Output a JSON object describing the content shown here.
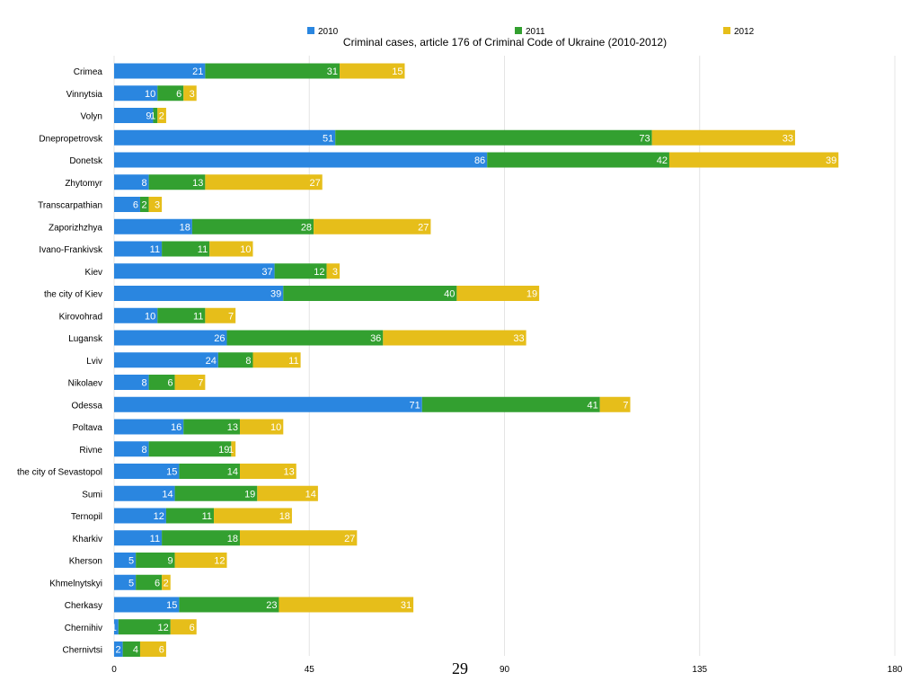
{
  "page_number": "29",
  "colors": {
    "2010": "#2a86e0",
    "2011": "#33a030",
    "2012": "#e6be1a",
    "grid": "#e4e4e4"
  },
  "chart_data": {
    "type": "bar",
    "orientation": "horizontal",
    "stacked": true,
    "title": "Criminal cases, article 176 of Criminal Code of Ukraine (2010-2012)",
    "legend_position": "top",
    "grid": true,
    "xlim": [
      0,
      180
    ],
    "x_ticks": [
      "0",
      "45",
      "90",
      "135",
      "180"
    ],
    "categories": [
      "Crimea",
      "Vinnytsia",
      "Volyn",
      "Dnepropetrovsk",
      "Donetsk",
      "Zhytomyr",
      "Transcarpathian",
      "Zaporizhzhya",
      "Ivano-Frankivsk",
      "Kiev",
      "the city of Kiev",
      "Kirovohrad",
      "Lugansk",
      "Lviv",
      "Nikolaev",
      "Odessa",
      "Poltava",
      "Rivne",
      "the city of Sevastopol",
      "Sumi",
      "Ternopil",
      "Kharkiv",
      "Kherson",
      "Khmelnytskyi",
      "Cherkasy",
      "Chernihiv",
      "Chernivtsi"
    ],
    "series": [
      {
        "name": "2010",
        "values": [
          21,
          10,
          9,
          51,
          86,
          8,
          6,
          18,
          11,
          37,
          39,
          10,
          26,
          24,
          8,
          71,
          16,
          8,
          15,
          14,
          12,
          11,
          5,
          5,
          15,
          1,
          2
        ]
      },
      {
        "name": "2011",
        "values": [
          31,
          6,
          1,
          73,
          42,
          13,
          2,
          28,
          11,
          12,
          40,
          11,
          36,
          8,
          6,
          41,
          13,
          19,
          14,
          19,
          11,
          18,
          9,
          6,
          23,
          12,
          4
        ]
      },
      {
        "name": "2012",
        "values": [
          15,
          3,
          2,
          33,
          39,
          27,
          3,
          27,
          10,
          3,
          19,
          7,
          33,
          11,
          7,
          7,
          10,
          1,
          13,
          14,
          18,
          27,
          12,
          2,
          31,
          6,
          6
        ]
      }
    ]
  }
}
